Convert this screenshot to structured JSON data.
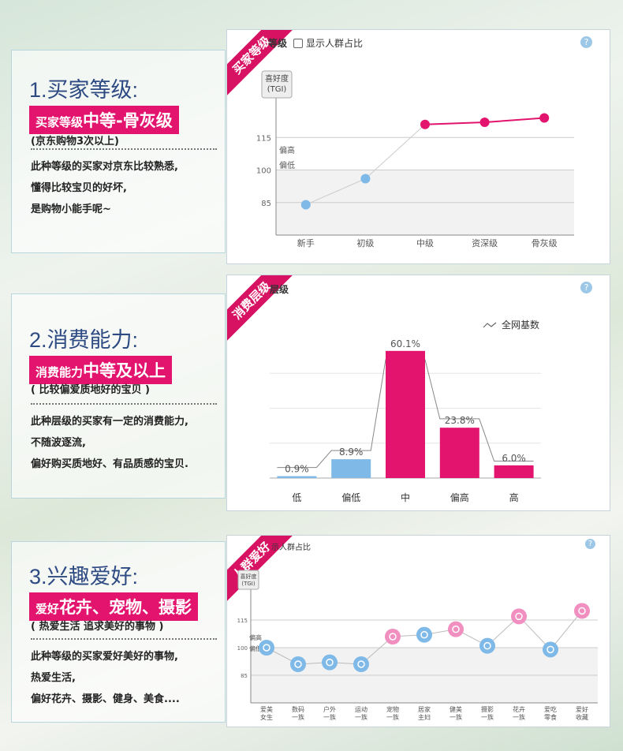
{
  "sections": [
    {
      "title": "1.买家等级:",
      "badge_prefix": "买家等级",
      "badge_strong": "中等-骨灰级",
      "sub": "(京东购物3次以上)",
      "desc": [
        "此种等级的买家对京东比较熟悉,",
        "懂得比较宝贝的好坏,",
        "是购物小能手呢~"
      ],
      "ribbon": "买家等级",
      "panel_title": "等级",
      "checkbox_label": "显示人群占比",
      "help": "?"
    },
    {
      "title": "2.消费能力:",
      "badge_prefix": "消费能力",
      "badge_strong": "中等及以上",
      "sub": "( 比较偏爱质地好的宝贝 )",
      "desc": [
        "此种层级的买家有一定的消费能力,",
        "不随波逐流,",
        "偏好购买质地好、有品质感的宝贝."
      ],
      "ribbon": "消费层级",
      "panel_title": "层级",
      "legend": "全网基数",
      "help": "?"
    },
    {
      "title": "3.兴趣爱好:",
      "badge_prefix": "爱好",
      "badge_strong": "花卉、宠物、摄影",
      "sub": "( 热爱生活 追求美好的事物 )",
      "desc": [
        "此种等级的买家爱好美好的事物,",
        "热爱生活,",
        "偏好花卉、摄影、健身、美食...."
      ],
      "ribbon": "人群爱好",
      "panel_title": "示人群占比",
      "help": "?"
    }
  ],
  "chart_data": [
    {
      "type": "line",
      "ylabel": "喜好度\n(TGI)",
      "categories": [
        "新手",
        "初级",
        "中级",
        "资深级",
        "骨灰级"
      ],
      "values": [
        84,
        96,
        121,
        122,
        124
      ],
      "colors": [
        "#7fb9e8",
        "#7fb9e8",
        "#e2146e",
        "#e2146e",
        "#e2146e"
      ],
      "yticks": [
        85,
        100,
        115
      ],
      "band_labels": [
        "偏高",
        "偏低"
      ]
    },
    {
      "type": "bar",
      "categories": [
        "低",
        "偏低",
        "中",
        "偏高",
        "高"
      ],
      "values": [
        0.9,
        8.9,
        60.1,
        23.8,
        6.0
      ],
      "labels": [
        "0.9%",
        "8.9%",
        "60.1%",
        "23.8%",
        "6.0%"
      ],
      "colors": [
        "#7fb9e8",
        "#7fb9e8",
        "#e2146e",
        "#e2146e",
        "#e2146e"
      ],
      "baseline": [
        5,
        13,
        56,
        28,
        8
      ]
    },
    {
      "type": "scatter",
      "ylabel": "喜好度\n(TGI)",
      "categories": [
        "爱美\n女生",
        "数码\n一族",
        "户外\n一族",
        "运动\n一族",
        "宠物\n一族",
        "居家\n主妇",
        "健美\n一族",
        "摄影\n一族",
        "花卉\n一族",
        "爱吃\n零食",
        "爱好\n收藏"
      ],
      "values": [
        100,
        91,
        92,
        91,
        106,
        107,
        110,
        101,
        117,
        99,
        120
      ],
      "colors": [
        "#7fb9e8",
        "#7fb9e8",
        "#7fb9e8",
        "#7fb9e8",
        "#f08fc0",
        "#7fb9e8",
        "#f08fc0",
        "#7fb9e8",
        "#f08fc0",
        "#7fb9e8",
        "#f08fc0"
      ],
      "yticks": [
        85,
        100,
        115
      ],
      "band_labels": [
        "偏高",
        "偏低"
      ]
    }
  ]
}
